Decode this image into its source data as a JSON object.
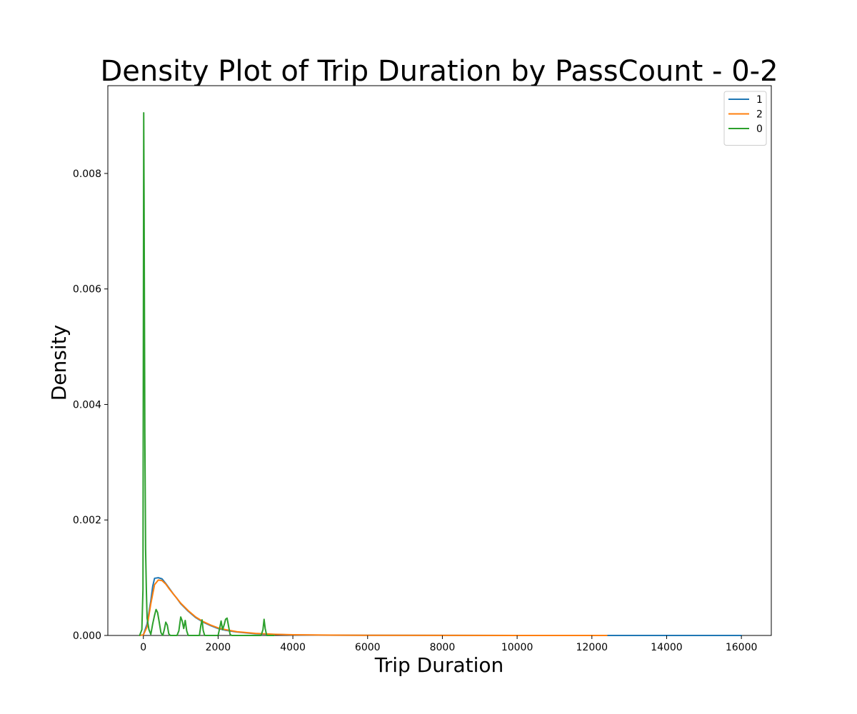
{
  "chart_data": {
    "type": "line",
    "title": "Density Plot of Trip Duration by PassCount - 0-2",
    "xlabel": "Trip Duration",
    "ylabel": "Density",
    "xlim": [
      -950,
      16800
    ],
    "ylim": [
      0,
      0.00952
    ],
    "x_ticks": [
      0,
      2000,
      4000,
      6000,
      8000,
      10000,
      12000,
      14000,
      16000
    ],
    "x_tick_labels": [
      "0",
      "2000",
      "4000",
      "6000",
      "8000",
      "10000",
      "12000",
      "14000",
      "16000"
    ],
    "y_ticks": [
      0,
      0.002,
      0.004,
      0.006,
      0.008
    ],
    "y_tick_labels": [
      "0.000",
      "0.002",
      "0.004",
      "0.006",
      "0.008"
    ],
    "grid": false,
    "legend_position": "top-right",
    "series": [
      {
        "name": "1",
        "color": "#1f77b4",
        "points": [
          [
            -100,
            0
          ],
          [
            0,
            1e-05
          ],
          [
            100,
            0.0002
          ],
          [
            200,
            0.0006
          ],
          [
            250,
            0.00085
          ],
          [
            300,
            0.00099
          ],
          [
            400,
            0.001
          ],
          [
            500,
            0.00098
          ],
          [
            600,
            0.0009
          ],
          [
            700,
            0.00081
          ],
          [
            800,
            0.00072
          ],
          [
            900,
            0.00064
          ],
          [
            1000,
            0.00055
          ],
          [
            1200,
            0.00042
          ],
          [
            1400,
            0.00031
          ],
          [
            1600,
            0.00023
          ],
          [
            1800,
            0.00017
          ],
          [
            2000,
            0.00012
          ],
          [
            2200,
            9e-05
          ],
          [
            2500,
            6e-05
          ],
          [
            3000,
            3e-05
          ],
          [
            3500,
            1.8e-05
          ],
          [
            4000,
            1e-05
          ],
          [
            5000,
            5e-06
          ],
          [
            6000,
            3e-06
          ],
          [
            8000,
            1e-06
          ],
          [
            10000,
            5e-07
          ],
          [
            12000,
            3e-07
          ],
          [
            14000,
            2e-07
          ],
          [
            16000,
            0
          ]
        ]
      },
      {
        "name": "2",
        "color": "#ff7f0e",
        "points": [
          [
            -100,
            0
          ],
          [
            0,
            1e-05
          ],
          [
            100,
            0.00015
          ],
          [
            200,
            0.00055
          ],
          [
            300,
            0.00088
          ],
          [
            400,
            0.00096
          ],
          [
            500,
            0.00095
          ],
          [
            600,
            0.00089
          ],
          [
            700,
            0.0008
          ],
          [
            800,
            0.00072
          ],
          [
            900,
            0.00064
          ],
          [
            1000,
            0.00056
          ],
          [
            1200,
            0.00043
          ],
          [
            1400,
            0.00032
          ],
          [
            1600,
            0.00024
          ],
          [
            1800,
            0.00018
          ],
          [
            2000,
            0.00013
          ],
          [
            2200,
            0.0001
          ],
          [
            2500,
            6.5e-05
          ],
          [
            3000,
            3.5e-05
          ],
          [
            3500,
            2e-05
          ],
          [
            4000,
            1.2e-05
          ],
          [
            5000,
            6e-06
          ],
          [
            6000,
            3e-06
          ],
          [
            8000,
            1e-06
          ],
          [
            10000,
            4e-07
          ],
          [
            12000,
            1e-07
          ],
          [
            12400,
            0
          ]
        ]
      },
      {
        "name": "0",
        "color": "#2ca02c",
        "points": [
          [
            -100,
            0
          ],
          [
            -40,
            0.0001
          ],
          [
            -10,
            0.0008
          ],
          [
            0,
            0.0051
          ],
          [
            10,
            0.00905
          ],
          [
            20,
            0.0075
          ],
          [
            40,
            0.0035
          ],
          [
            60,
            0.0015
          ],
          [
            80,
            0.0008
          ],
          [
            100,
            0.0003
          ],
          [
            150,
            0.0001
          ],
          [
            200,
            2e-05
          ],
          [
            250,
            0.0002
          ],
          [
            300,
            0.00035
          ],
          [
            340,
            0.00045
          ],
          [
            380,
            0.0004
          ],
          [
            420,
            0.00025
          ],
          [
            470,
            5e-05
          ],
          [
            520,
            0
          ],
          [
            560,
            0.0001
          ],
          [
            600,
            0.00023
          ],
          [
            640,
            0.00018
          ],
          [
            680,
            3e-05
          ],
          [
            720,
            0
          ],
          [
            900,
            0
          ],
          [
            950,
            8e-05
          ],
          [
            1000,
            0.00032
          ],
          [
            1040,
            0.00025
          ],
          [
            1080,
            0.00012
          ],
          [
            1120,
            0.00026
          ],
          [
            1160,
            8e-05
          ],
          [
            1200,
            0
          ],
          [
            1500,
            0
          ],
          [
            1540,
            0.00018
          ],
          [
            1570,
            0.00027
          ],
          [
            1600,
            9e-05
          ],
          [
            1640,
            0
          ],
          [
            2000,
            0
          ],
          [
            2050,
            0.00015
          ],
          [
            2080,
            0.00025
          ],
          [
            2120,
            0.0001
          ],
          [
            2160,
            0.00018
          ],
          [
            2200,
            0.00028
          ],
          [
            2240,
            0.0003
          ],
          [
            2280,
            0.00016
          ],
          [
            2320,
            2e-05
          ],
          [
            2360,
            0
          ],
          [
            3150,
            0
          ],
          [
            3200,
            0.0001
          ],
          [
            3230,
            0.00028
          ],
          [
            3260,
            0.00012
          ],
          [
            3300,
            0
          ],
          [
            3500,
            0
          ]
        ]
      }
    ]
  }
}
